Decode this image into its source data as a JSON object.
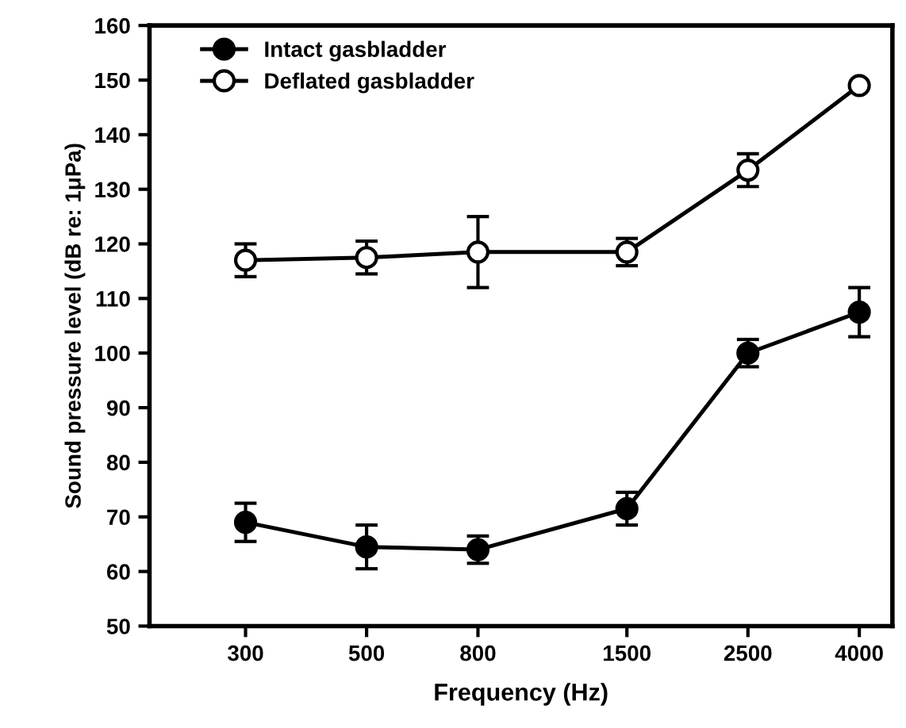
{
  "chart_data": {
    "type": "line",
    "xlabel": "Frequency (Hz)",
    "ylabel": "Sound pressure level (dB re: 1μPa)",
    "x": [
      300,
      500,
      800,
      1500,
      2500,
      4000
    ],
    "series": [
      {
        "name": "Intact gasbladder",
        "color": "#000000",
        "marker": "circle",
        "values": [
          69,
          64.5,
          64,
          71.5,
          100,
          107.5
        ],
        "errors": [
          3.5,
          4,
          2.5,
          3,
          2.5,
          4.5
        ]
      },
      {
        "name": "Deflated gasbladder",
        "color": "#000000",
        "marker": "circle",
        "values": [
          117,
          117.5,
          118.5,
          118.5,
          133.5,
          149
        ],
        "errors": [
          3,
          3,
          6.5,
          2.5,
          3,
          null
        ]
      }
    ],
    "log": "x",
    "xlim": [
      200,
      4600
    ],
    "xticks": [
      300,
      500,
      800,
      1500,
      2500,
      4000
    ],
    "ylim": [
      50,
      160
    ],
    "yticks": [
      50,
      60,
      70,
      80,
      90,
      100,
      110,
      120,
      130,
      140,
      150,
      160
    ],
    "grid": false,
    "legend": "top left",
    "line_style": "solid"
  }
}
